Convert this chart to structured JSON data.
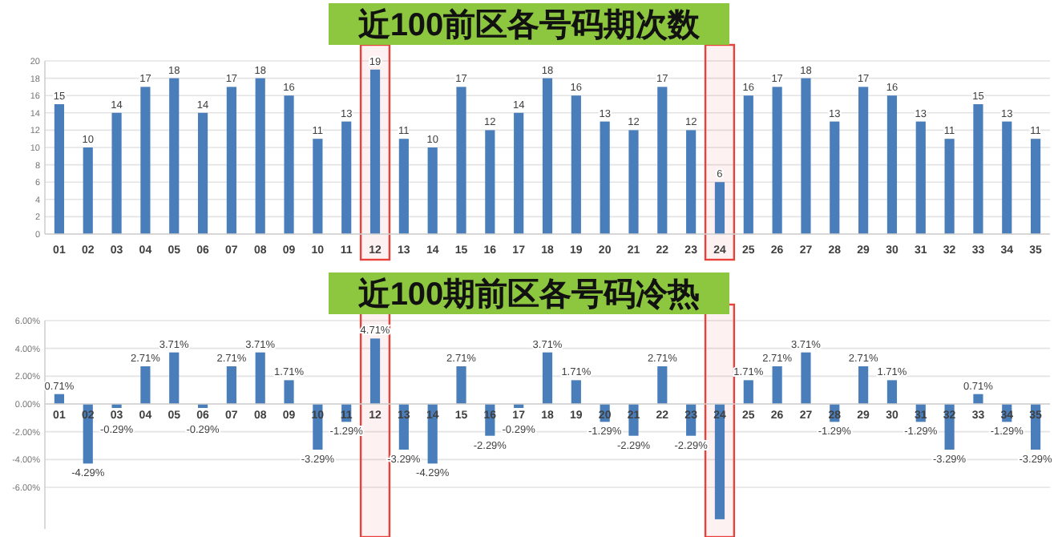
{
  "chart_data": [
    {
      "type": "bar",
      "title": "近100前区各号码期次数",
      "categories": [
        "01",
        "02",
        "03",
        "04",
        "05",
        "06",
        "07",
        "08",
        "09",
        "10",
        "11",
        "12",
        "13",
        "14",
        "15",
        "16",
        "17",
        "18",
        "19",
        "20",
        "21",
        "22",
        "23",
        "24",
        "25",
        "26",
        "27",
        "28",
        "29",
        "30",
        "31",
        "32",
        "33",
        "34",
        "35"
      ],
      "values": [
        15,
        10,
        14,
        17,
        18,
        14,
        17,
        18,
        16,
        11,
        13,
        19,
        11,
        10,
        17,
        12,
        14,
        18,
        16,
        13,
        12,
        17,
        12,
        6,
        16,
        17,
        18,
        13,
        17,
        16,
        13,
        11,
        15,
        13,
        11
      ],
      "color": "#4a7ebb",
      "ylim": [
        0,
        20
      ],
      "yticks": [
        0,
        2,
        4,
        6,
        8,
        10,
        12,
        14,
        16,
        18,
        20
      ],
      "grid": "y",
      "data_labels": true,
      "bands": [
        {
          "axis": "x",
          "from": "12",
          "to": "12",
          "color": "#e8403a"
        },
        {
          "axis": "x",
          "from": "24",
          "to": "24",
          "color": "#e8403a"
        }
      ]
    },
    {
      "type": "bar",
      "title": "近100期前区各号码冷热",
      "categories": [
        "01",
        "02",
        "03",
        "04",
        "05",
        "06",
        "07",
        "08",
        "09",
        "10",
        "11",
        "12",
        "13",
        "14",
        "15",
        "16",
        "17",
        "18",
        "19",
        "20",
        "21",
        "22",
        "23",
        "24",
        "25",
        "26",
        "27",
        "28",
        "29",
        "30",
        "31",
        "32",
        "33",
        "34",
        "35"
      ],
      "values": [
        0.71,
        -4.29,
        -0.29,
        2.71,
        3.71,
        -0.29,
        2.71,
        3.71,
        1.71,
        -3.29,
        -1.29,
        4.71,
        -3.29,
        -4.29,
        2.71,
        -2.29,
        -0.29,
        3.71,
        1.71,
        -1.29,
        -2.29,
        2.71,
        -2.29,
        -8.3,
        1.71,
        2.71,
        3.71,
        -1.29,
        2.71,
        1.71,
        -1.29,
        -3.29,
        0.71,
        -1.29,
        -3.29
      ],
      "value_labels": [
        "0.71%",
        "-4.29%",
        "-0.29%",
        "2.71%",
        "3.71%",
        "-0.29%",
        "2.71%",
        "3.71%",
        "1.71%",
        "-3.29%",
        "-1.29%",
        "4.71%",
        "-3.29%",
        "-4.29%",
        "2.71%",
        "-2.29%",
        "-0.29%",
        "3.71%",
        "1.71%",
        "-1.29%",
        "-2.29%",
        "2.71%",
        "-2.29%",
        null,
        "1.71%",
        "2.71%",
        "3.71%",
        "-1.29%",
        "2.71%",
        "1.71%",
        "-1.29%",
        "-3.29%",
        "0.71%",
        "-1.29%",
        "-3.29%"
      ],
      "color": "#4a7ebb",
      "ylim": [
        -9,
        6
      ],
      "yticks": [
        {
          "value": -6,
          "label": "-6.00%"
        },
        {
          "value": -4,
          "label": "-4.00%"
        },
        {
          "value": -2,
          "label": "-2.00%"
        },
        {
          "value": 0,
          "label": "0.00%"
        },
        {
          "value": 2,
          "label": "2.00%"
        },
        {
          "value": 4,
          "label": "4.00%"
        },
        {
          "value": 6,
          "label": "6.00%"
        }
      ],
      "grid": "y",
      "bands": [
        {
          "axis": "x",
          "from": "12",
          "to": "12",
          "color": "#e8403a"
        },
        {
          "axis": "x",
          "from": "24",
          "to": "24",
          "color": "#e8403a"
        }
      ]
    }
  ]
}
